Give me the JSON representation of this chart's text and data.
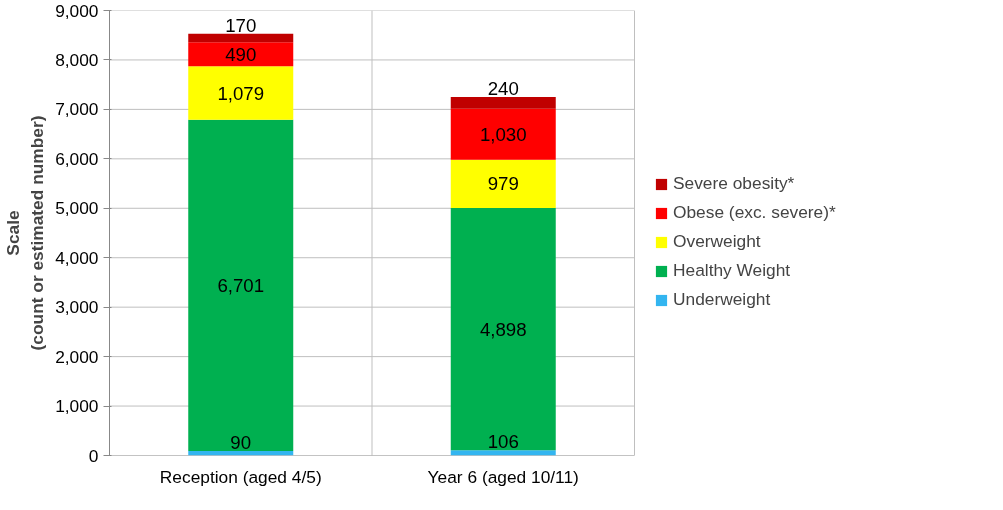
{
  "chart_data": {
    "type": "bar",
    "stacked": true,
    "ylabel": "Scale\n(count or estimated number)",
    "categories": [
      "Reception (aged 4/5)",
      "Year 6 (aged 10/11)"
    ],
    "series": [
      {
        "name": "Underweight",
        "color": "#33b5f0",
        "values": [
          90,
          106
        ],
        "value_labels": [
          "90",
          "106"
        ]
      },
      {
        "name": "Healthy Weight",
        "color": "#00b050",
        "values": [
          6701,
          4898
        ],
        "value_labels": [
          "6,701",
          "4,898"
        ]
      },
      {
        "name": "Overweight",
        "color": "#ffff00",
        "values": [
          1079,
          979
        ],
        "value_labels": [
          "1,079",
          "979"
        ]
      },
      {
        "name": "Obese (exc. severe)*",
        "color": "#ff0000",
        "values": [
          490,
          1030
        ],
        "value_labels": [
          "490",
          "1,030"
        ]
      },
      {
        "name": "Severe obesity*",
        "color": "#c00000",
        "values": [
          170,
          240
        ],
        "value_labels": [
          "170",
          "240"
        ]
      }
    ],
    "ylim": [
      0,
      9000
    ],
    "yticks": [
      {
        "value": 0,
        "label": "0"
      },
      {
        "value": 1000,
        "label": "1,000"
      },
      {
        "value": 2000,
        "label": "2,000"
      },
      {
        "value": 3000,
        "label": "3,000"
      },
      {
        "value": 4000,
        "label": "4,000"
      },
      {
        "value": 5000,
        "label": "5,000"
      },
      {
        "value": 6000,
        "label": "6,000"
      },
      {
        "value": 7000,
        "label": "7,000"
      },
      {
        "value": 8000,
        "label": "8,000"
      },
      {
        "value": 9000,
        "label": "9,000"
      }
    ],
    "grid": true,
    "legend": "right"
  }
}
